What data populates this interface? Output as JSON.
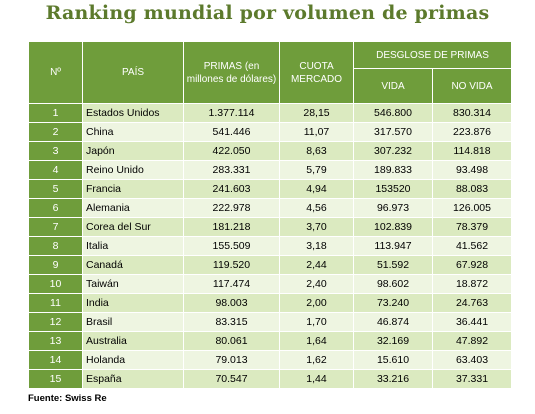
{
  "title": "Ranking mundial por volumen de primas",
  "headers": {
    "rank": "Nº",
    "country": "PAÍS",
    "premiums": "PRIMAS (en millones de dólares)",
    "market_share": "CUOTA MERCADO",
    "breakdown": "DESGLOSE DE PRIMAS",
    "life": "VIDA",
    "non_life": "NO VIDA"
  },
  "rows": [
    {
      "rank": "1",
      "country": "Estados Unidos",
      "premiums": "1.377.114",
      "share": "28,15",
      "life": "546.800",
      "non_life": "830.314"
    },
    {
      "rank": "2",
      "country": "China",
      "premiums": "541.446",
      "share": "11,07",
      "life": "317.570",
      "non_life": "223.876"
    },
    {
      "rank": "3",
      "country": "Japón",
      "premiums": "422.050",
      "share": "8,63",
      "life": "307.232",
      "non_life": "114.818"
    },
    {
      "rank": "4",
      "country": "Reino Unido",
      "premiums": "283.331",
      "share": "5,79",
      "life": "189.833",
      "non_life": "93.498"
    },
    {
      "rank": "5",
      "country": "Francia",
      "premiums": "241.603",
      "share": "4,94",
      "life": "153520",
      "non_life": "88.083"
    },
    {
      "rank": "6",
      "country": "Alemania",
      "premiums": "222.978",
      "share": "4,56",
      "life": "96.973",
      "non_life": "126.005"
    },
    {
      "rank": "7",
      "country": "Corea del Sur",
      "premiums": "181.218",
      "share": "3,70",
      "life": "102.839",
      "non_life": "78.379"
    },
    {
      "rank": "8",
      "country": "Italia",
      "premiums": "155.509",
      "share": "3,18",
      "life": "113.947",
      "non_life": "41.562"
    },
    {
      "rank": "9",
      "country": "Canadá",
      "premiums": "119.520",
      "share": "2,44",
      "life": "51.592",
      "non_life": "67.928"
    },
    {
      "rank": "10",
      "country": "Taiwán",
      "premiums": "117.474",
      "share": "2,40",
      "life": "98.602",
      "non_life": "18.872"
    },
    {
      "rank": "11",
      "country": "India",
      "premiums": "98.003",
      "share": "2,00",
      "life": "73.240",
      "non_life": "24.763"
    },
    {
      "rank": "12",
      "country": "Brasil",
      "premiums": "83.315",
      "share": "1,70",
      "life": "46.874",
      "non_life": "36.441"
    },
    {
      "rank": "13",
      "country": "Australia",
      "premiums": "80.061",
      "share": "1,64",
      "life": "32.169",
      "non_life": "47.892"
    },
    {
      "rank": "14",
      "country": "Holanda",
      "premiums": "79.013",
      "share": "1,62",
      "life": "15.610",
      "non_life": "63.403"
    },
    {
      "rank": "15",
      "country": "España",
      "premiums": "70.547",
      "share": "1,44",
      "life": "33.216",
      "non_life": "37.331"
    }
  ],
  "source": "Fuente: Swiss Re",
  "colors": {
    "header": "#6f9d3b",
    "row_odd": "#dbeac0",
    "row_even": "#eef5e1",
    "title": "#5c7a2c"
  }
}
